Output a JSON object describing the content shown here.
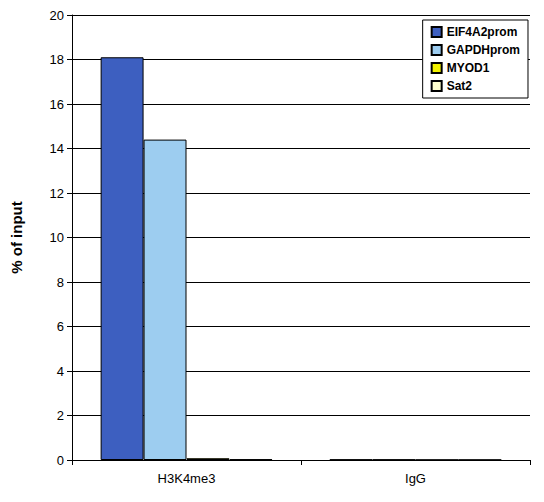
{
  "chart_data": {
    "type": "bar",
    "y_label": "% of input",
    "categories": [
      "H3K4me3",
      "IgG"
    ],
    "series": [
      {
        "name": "EIF4A2prom",
        "color": "#3d5fc0",
        "values": [
          18.1,
          0.02
        ]
      },
      {
        "name": "GAPDHprom",
        "color": "#9dcdf0",
        "values": [
          14.4,
          0.02
        ]
      },
      {
        "name": "MYOD1",
        "color": "#f2f200",
        "values": [
          0.08,
          0.01
        ]
      },
      {
        "name": "Sat2",
        "color": "#ffffcc",
        "values": [
          0.03,
          0.01
        ]
      }
    ],
    "ylim": [
      0,
      20
    ],
    "yticks": [
      0,
      2,
      4,
      6,
      8,
      10,
      12,
      14,
      16,
      18,
      20
    ],
    "grid": true,
    "legend": "top-right"
  }
}
